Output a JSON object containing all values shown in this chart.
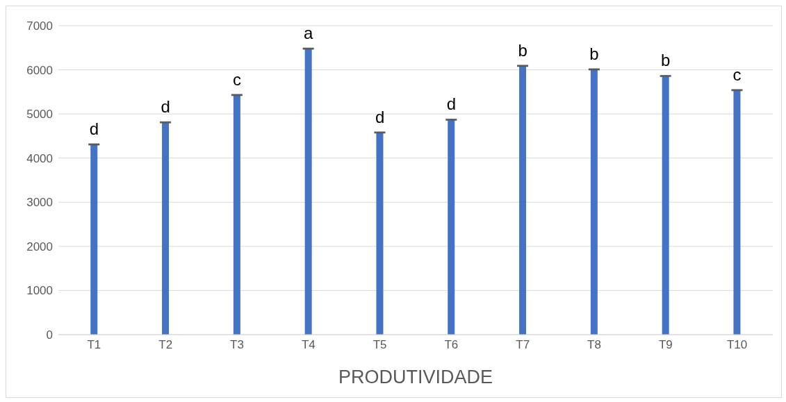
{
  "chart_data": {
    "type": "bar",
    "xlabel": "PRODUTIVIDADE",
    "categories": [
      "T1",
      "T2",
      "T3",
      "T4",
      "T5",
      "T6",
      "T7",
      "T8",
      "T9",
      "T10"
    ],
    "values": [
      4310,
      4810,
      5430,
      6480,
      4580,
      4870,
      6090,
      6010,
      5860,
      5540
    ],
    "errors": [
      10,
      10,
      10,
      10,
      10,
      10,
      10,
      10,
      10,
      10
    ],
    "color": "#4472c4",
    "ylim": [
      0,
      7000
    ],
    "yticks": [
      0,
      1000,
      2000,
      3000,
      4000,
      5000,
      6000,
      7000
    ],
    "grid": "y",
    "annotations": [
      {
        "text": "d",
        "x": "T1",
        "y": 4310
      },
      {
        "text": "d",
        "x": "T2",
        "y": 4810
      },
      {
        "text": "c",
        "x": "T3",
        "y": 5430
      },
      {
        "text": "a",
        "x": "T4",
        "y": 6480
      },
      {
        "text": "d",
        "x": "T5",
        "y": 4580
      },
      {
        "text": "d",
        "x": "T6",
        "y": 4870
      },
      {
        "text": "b",
        "x": "T7",
        "y": 6090
      },
      {
        "text": "b",
        "x": "T8",
        "y": 6010
      },
      {
        "text": "b",
        "x": "T9",
        "y": 5860
      },
      {
        "text": "c",
        "x": "T10",
        "y": 5540
      }
    ]
  }
}
